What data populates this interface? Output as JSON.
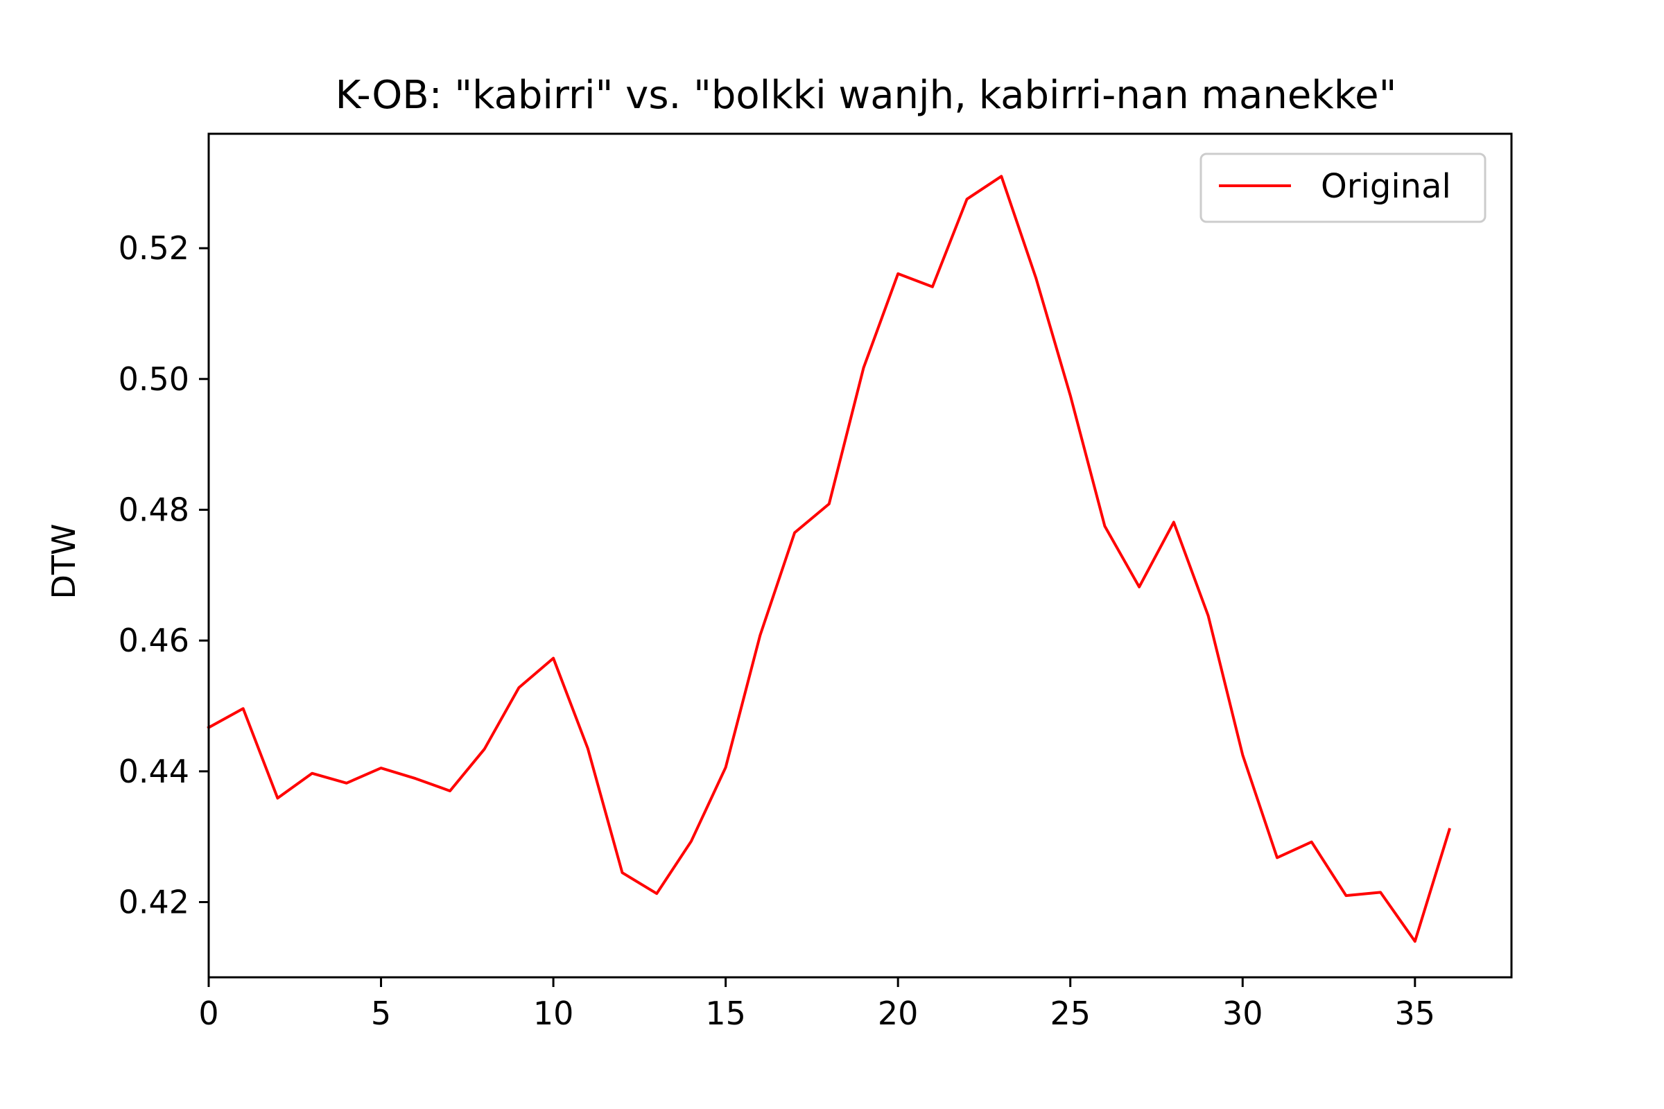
{
  "chart_data": {
    "type": "line",
    "title": "K-OB: \"kabirri\" vs. \"bolkki wanjh, kabirri-nan manekke\"",
    "xlabel": "",
    "ylabel": "DTW",
    "xlim": [
      0,
      37.8
    ],
    "ylim": [
      0.4085,
      0.5375
    ],
    "xticks": [
      0,
      5,
      10,
      15,
      20,
      25,
      30,
      35
    ],
    "yticks": [
      0.42,
      0.44,
      0.46,
      0.48,
      0.5,
      0.52
    ],
    "ytick_labels": [
      "0.42",
      "0.44",
      "0.46",
      "0.48",
      "0.50",
      "0.52"
    ],
    "grid": false,
    "legend_position": "top-right",
    "series": [
      {
        "name": "Original",
        "color": "#ff0000",
        "x": [
          0,
          1,
          2,
          3,
          4,
          5,
          6,
          7,
          8,
          9,
          10,
          11,
          12,
          13,
          14,
          15,
          16,
          17,
          18,
          19,
          20,
          21,
          22,
          23,
          24,
          25,
          26,
          27,
          28,
          29,
          30,
          31,
          32,
          33,
          34,
          35,
          36
        ],
        "values": [
          0.4467,
          0.4496,
          0.4359,
          0.4397,
          0.4382,
          0.4405,
          0.4389,
          0.437,
          0.4434,
          0.4528,
          0.4573,
          0.4435,
          0.4245,
          0.4213,
          0.4293,
          0.4406,
          0.4608,
          0.4765,
          0.4809,
          0.5017,
          0.5161,
          0.5141,
          0.5275,
          0.531,
          0.5155,
          0.4975,
          0.4775,
          0.4682,
          0.4781,
          0.4638,
          0.4425,
          0.4268,
          0.4292,
          0.421,
          0.4215,
          0.414,
          0.4311
        ]
      }
    ]
  }
}
